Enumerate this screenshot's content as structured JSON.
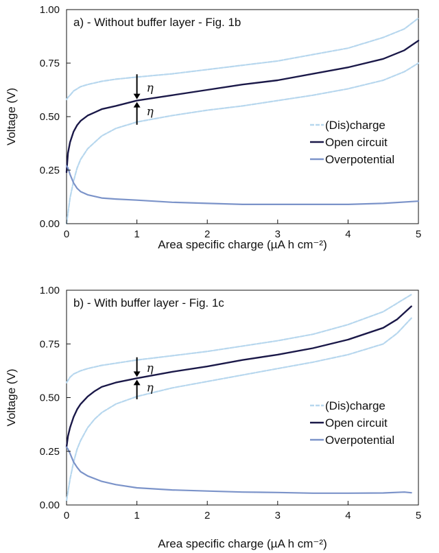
{
  "colors": {
    "charge": "#b7d7ee",
    "open_circuit": "#1a1848",
    "overpotential": "#7b93c9",
    "axis": "#111111"
  },
  "eta_symbol": "η",
  "chart_data": [
    {
      "type": "line",
      "panel_title": "a) - Without buffer layer - Fig. 1b",
      "xlabel": "Area specific charge (µA h cm⁻²)",
      "ylabel": "Voltage (V)",
      "xlim": [
        0,
        5
      ],
      "ylim": [
        0,
        1.0
      ],
      "x_ticks": [
        "0",
        "1",
        "2",
        "3",
        "4",
        "5"
      ],
      "y_ticks": [
        "0.00",
        "0.25",
        "0.50",
        "0.75",
        "1.00"
      ],
      "legend_position": "center-right",
      "legend": [
        "(Dis)charge",
        "Open circuit",
        "Overpotential"
      ],
      "eta_annotation_x": 1.0,
      "series": [
        {
          "name": "(Dis)charge",
          "role": "charge_upper",
          "x": [
            0,
            0.02,
            0.05,
            0.1,
            0.2,
            0.3,
            0.5,
            0.7,
            1.0,
            1.5,
            2.0,
            2.5,
            3.0,
            3.5,
            4.0,
            4.5,
            4.8,
            5.0
          ],
          "y": [
            0.58,
            0.59,
            0.6,
            0.62,
            0.64,
            0.65,
            0.665,
            0.675,
            0.685,
            0.7,
            0.72,
            0.74,
            0.76,
            0.79,
            0.82,
            0.87,
            0.91,
            0.96
          ]
        },
        {
          "name": "(Dis)charge",
          "role": "charge_lower",
          "x": [
            0,
            0.05,
            0.1,
            0.15,
            0.2,
            0.3,
            0.4,
            0.5,
            0.7,
            1.0,
            1.5,
            2.0,
            2.5,
            3.0,
            3.5,
            4.0,
            4.5,
            4.8,
            5.0
          ],
          "y": [
            0.0,
            0.12,
            0.2,
            0.26,
            0.3,
            0.35,
            0.38,
            0.41,
            0.445,
            0.475,
            0.505,
            0.53,
            0.55,
            0.575,
            0.6,
            0.63,
            0.67,
            0.71,
            0.75
          ]
        },
        {
          "name": "Open circuit",
          "x": [
            0,
            0.02,
            0.05,
            0.1,
            0.15,
            0.2,
            0.3,
            0.4,
            0.5,
            0.7,
            1.0,
            1.5,
            2.0,
            2.5,
            3.0,
            3.5,
            4.0,
            4.5,
            4.8,
            5.0
          ],
          "y": [
            0.24,
            0.33,
            0.38,
            0.43,
            0.46,
            0.48,
            0.505,
            0.52,
            0.535,
            0.55,
            0.575,
            0.6,
            0.625,
            0.65,
            0.67,
            0.7,
            0.73,
            0.77,
            0.81,
            0.855
          ]
        },
        {
          "name": "Overpotential",
          "x": [
            0,
            0.02,
            0.05,
            0.1,
            0.15,
            0.2,
            0.3,
            0.5,
            0.7,
            1.0,
            1.5,
            2.0,
            2.5,
            3.0,
            3.5,
            4.0,
            4.5,
            5.0
          ],
          "y": [
            0.27,
            0.26,
            0.23,
            0.19,
            0.165,
            0.15,
            0.135,
            0.12,
            0.115,
            0.11,
            0.1,
            0.095,
            0.09,
            0.09,
            0.09,
            0.09,
            0.095,
            0.105
          ]
        }
      ]
    },
    {
      "type": "line",
      "panel_title": "b) - With buffer layer - Fig. 1c",
      "xlabel": "Area specific charge (µA h cm⁻²)",
      "ylabel": "Voltage (V)",
      "xlim": [
        0,
        5
      ],
      "ylim": [
        0,
        1.0
      ],
      "x_ticks": [
        "0",
        "1",
        "2",
        "3",
        "4",
        "5"
      ],
      "y_ticks": [
        "0.00",
        "0.25",
        "0.50",
        "0.75",
        "1.00"
      ],
      "legend_position": "center-right",
      "legend": [
        "(Dis)charge",
        "Open circuit",
        "Overpotential"
      ],
      "eta_annotation_x": 1.0,
      "series": [
        {
          "name": "(Dis)charge",
          "role": "charge_upper",
          "x": [
            0,
            0.02,
            0.05,
            0.1,
            0.2,
            0.3,
            0.5,
            0.7,
            1.0,
            1.5,
            2.0,
            2.5,
            3.0,
            3.5,
            4.0,
            4.5,
            4.7,
            4.9
          ],
          "y": [
            0.57,
            0.58,
            0.595,
            0.61,
            0.625,
            0.635,
            0.65,
            0.66,
            0.675,
            0.695,
            0.715,
            0.74,
            0.765,
            0.795,
            0.84,
            0.9,
            0.94,
            0.98
          ]
        },
        {
          "name": "(Dis)charge",
          "role": "charge_lower",
          "x": [
            0,
            0.05,
            0.1,
            0.15,
            0.2,
            0.3,
            0.4,
            0.5,
            0.7,
            1.0,
            1.5,
            2.0,
            2.5,
            3.0,
            3.5,
            4.0,
            4.5,
            4.7,
            4.9
          ],
          "y": [
            0.02,
            0.12,
            0.2,
            0.26,
            0.3,
            0.36,
            0.4,
            0.43,
            0.47,
            0.505,
            0.545,
            0.575,
            0.605,
            0.635,
            0.665,
            0.7,
            0.75,
            0.8,
            0.87
          ]
        },
        {
          "name": "Open circuit",
          "x": [
            0,
            0.02,
            0.05,
            0.1,
            0.15,
            0.2,
            0.3,
            0.4,
            0.5,
            0.7,
            1.0,
            1.5,
            2.0,
            2.5,
            3.0,
            3.5,
            4.0,
            4.5,
            4.7,
            4.9
          ],
          "y": [
            0.27,
            0.32,
            0.36,
            0.41,
            0.445,
            0.47,
            0.505,
            0.53,
            0.55,
            0.57,
            0.59,
            0.62,
            0.645,
            0.675,
            0.7,
            0.73,
            0.77,
            0.825,
            0.865,
            0.925
          ]
        },
        {
          "name": "Overpotential",
          "x": [
            0,
            0.02,
            0.05,
            0.1,
            0.15,
            0.2,
            0.3,
            0.5,
            0.7,
            1.0,
            1.5,
            2.0,
            2.5,
            3.0,
            3.5,
            4.0,
            4.5,
            4.8,
            4.9
          ],
          "y": [
            0.27,
            0.26,
            0.24,
            0.2,
            0.175,
            0.155,
            0.135,
            0.11,
            0.095,
            0.08,
            0.07,
            0.065,
            0.06,
            0.058,
            0.055,
            0.055,
            0.056,
            0.06,
            0.057
          ]
        }
      ]
    }
  ]
}
